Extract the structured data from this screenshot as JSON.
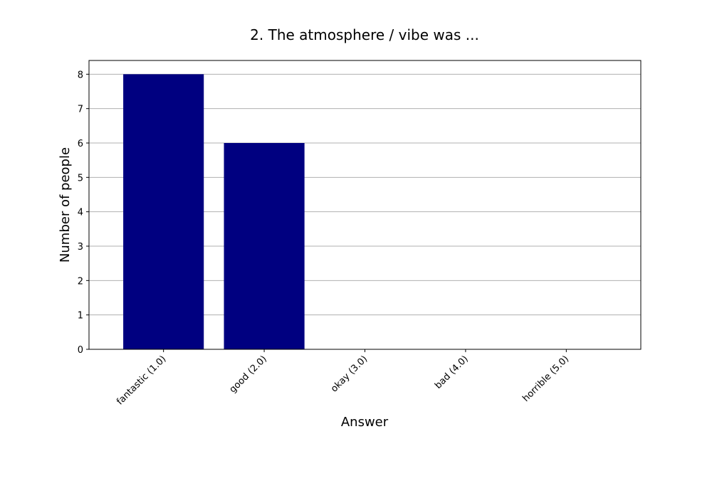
{
  "chart_data": {
    "type": "bar",
    "title": "2. The atmosphere / vibe was ...",
    "xlabel": "Answer",
    "ylabel": "Number of people",
    "categories": [
      "fantastic (1.0)",
      "good (2.0)",
      "okay (3.0)",
      "bad (4.0)",
      "horrible (5.0)"
    ],
    "values": [
      8,
      6,
      0,
      0,
      0
    ],
    "yticks": [
      "0",
      "1",
      "2",
      "3",
      "4",
      "5",
      "6",
      "7",
      "8"
    ],
    "ylim": [
      0,
      8.4
    ],
    "grid": "horizontal",
    "legend": "none",
    "colors": {
      "bar": "#000080",
      "grid": "#b0b0b0",
      "axes": "#000000"
    }
  }
}
